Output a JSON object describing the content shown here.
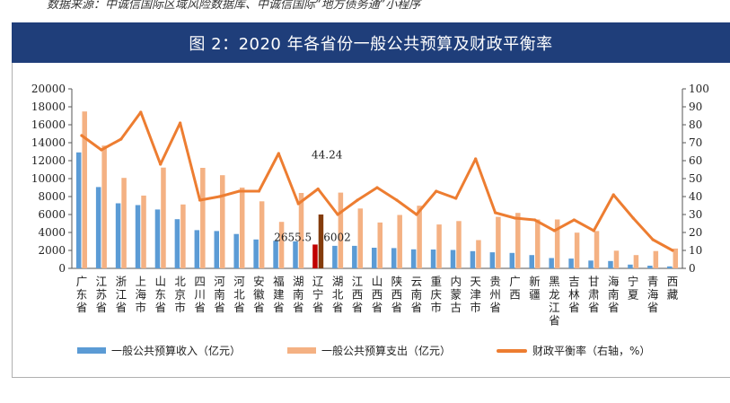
{
  "source_text": "数据来源：中诚信国际区域风险数据库、中诚信国际“地方债务通”小程序",
  "chart_data": {
    "type": "bar",
    "title": "图 2：2020 年各省份一般公共预算及财政平衡率",
    "categories": [
      "广东省",
      "江苏省",
      "浙江省",
      "上海市",
      "山东省",
      "北京市",
      "四川省",
      "河南省",
      "河北省",
      "安徽省",
      "福建省",
      "湖南省",
      "辽宁省",
      "湖北省",
      "江西省",
      "山西省",
      "陕西省",
      "云南省",
      "重庆市",
      "内蒙古",
      "天津市",
      "贵州省",
      "广西",
      "新疆",
      "黑龙江省",
      "吉林省",
      "甘肃省",
      "海南省",
      "宁夏",
      "青海省",
      "西藏"
    ],
    "series": [
      {
        "name": "一般公共预算收入（亿元）",
        "axis": "left",
        "color": "#5b9bd5",
        "values": [
          12920,
          9060,
          7250,
          7050,
          6560,
          5480,
          4260,
          4160,
          3830,
          3220,
          3080,
          3010,
          2655.5,
          2510,
          2510,
          2300,
          2260,
          2120,
          2100,
          2050,
          1920,
          1790,
          1720,
          1480,
          1150,
          1090,
          870,
          820,
          420,
          300,
          220
        ]
      },
      {
        "name": "一般公共预算支出（亿元）",
        "axis": "left",
        "color": "#f4b183",
        "values": [
          17480,
          13680,
          10080,
          8110,
          11230,
          7120,
          11200,
          10380,
          9000,
          7470,
          5180,
          8400,
          6002,
          8440,
          6670,
          5110,
          5950,
          6980,
          4890,
          5270,
          3150,
          5740,
          6180,
          5450,
          5450,
          3980,
          4160,
          1970,
          1480,
          1930,
          2210
        ]
      },
      {
        "name": "财政平衡率（右轴，%）",
        "axis": "right",
        "color": "#ed7d31",
        "values": [
          74,
          66,
          72,
          87,
          58,
          81,
          38,
          40,
          43,
          43,
          64,
          36,
          44.24,
          30,
          38,
          45,
          38,
          30,
          43,
          39,
          61,
          31,
          28,
          27,
          21,
          27,
          21,
          41,
          28,
          16,
          10
        ]
      }
    ],
    "highlight": {
      "index": 12,
      "income_color": "#c00000",
      "expense_color": "#843c0c"
    },
    "annotations": [
      {
        "text": "44.24",
        "target": "series.2",
        "index": 12
      },
      {
        "text": "2655.5",
        "target": "series.0",
        "index": 12
      },
      {
        "text": "6002",
        "target": "series.1",
        "index": 12
      }
    ],
    "y_left": {
      "min": 0,
      "max": 20000,
      "ticks": [
        0,
        2000,
        4000,
        6000,
        8000,
        10000,
        12000,
        14000,
        16000,
        18000,
        20000
      ]
    },
    "y_right": {
      "min": 0,
      "max": 100,
      "ticks": [
        0,
        10,
        20,
        30,
        40,
        50,
        60,
        70,
        80,
        90,
        100
      ]
    },
    "grid": false,
    "legend_position": "bottom"
  }
}
